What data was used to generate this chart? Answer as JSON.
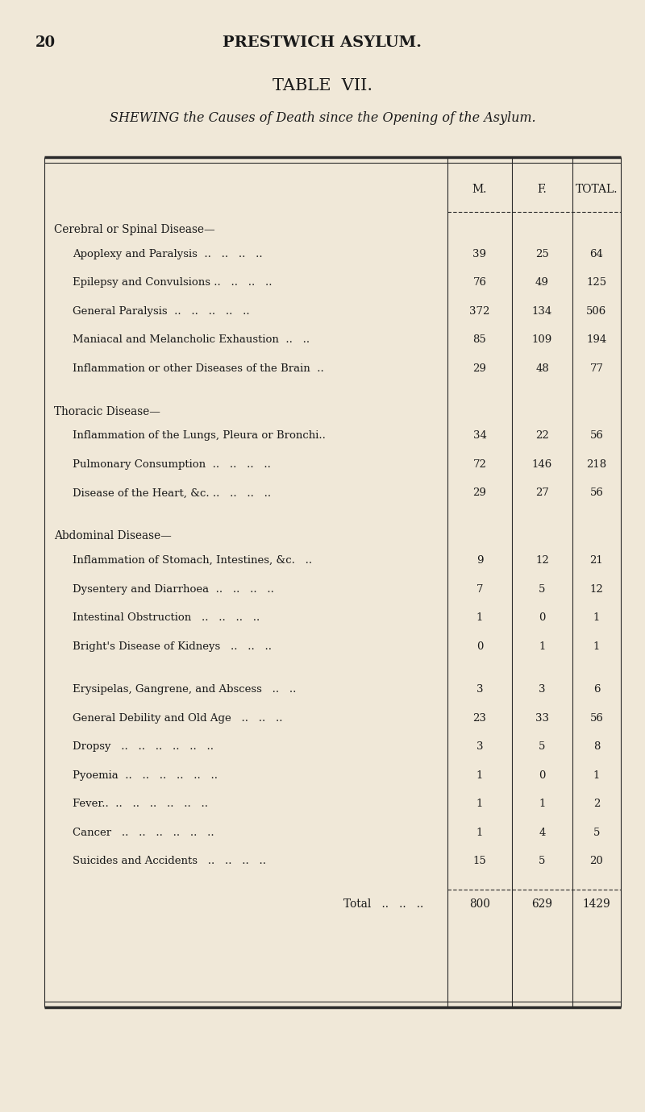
{
  "page_number": "20",
  "header": "PRESTWICH ASYLUM.",
  "table_title": "TABLE  VII.",
  "subtitle": "SHEWING the Causes of Death since the Opening of the Asylum.",
  "bg_color": "#f0e8d8",
  "col_headers": [
    "M.",
    "F.",
    "TOTAL."
  ],
  "sections": [
    {
      "section_header": "Cerebral or Spinal Disease—",
      "rows": [
        {
          "label": "Apoplexy and Paralysis  ..   ..   ..   ..",
          "m": 39,
          "f": 25,
          "total": 64
        },
        {
          "label": "Epilepsy and Convulsions ..   ..   ..   ..",
          "m": 76,
          "f": 49,
          "total": 125
        },
        {
          "label": "General Paralysis  ..   ..   ..   ..   ..",
          "m": 372,
          "f": 134,
          "total": 506
        },
        {
          "label": "Maniacal and Melancholic Exhaustion  ..   ..",
          "m": 85,
          "f": 109,
          "total": 194
        },
        {
          "label": "Inflammation or other Diseases of the Brain  ..",
          "m": 29,
          "f": 48,
          "total": 77
        }
      ]
    },
    {
      "section_header": "Thoracic Disease—",
      "rows": [
        {
          "label": "Inflammation of the Lungs, Pleura or Bronchi..",
          "m": 34,
          "f": 22,
          "total": 56
        },
        {
          "label": "Pulmonary Consumption  ..   ..   ..   ..",
          "m": 72,
          "f": 146,
          "total": 218
        },
        {
          "label": "Disease of the Heart, &c. ..   ..   ..   ..",
          "m": 29,
          "f": 27,
          "total": 56
        }
      ]
    },
    {
      "section_header": "Abdominal Disease—",
      "rows": [
        {
          "label": "Inflammation of Stomach, Intestines, &c.   ..",
          "m": 9,
          "f": 12,
          "total": 21
        },
        {
          "label": "Dysentery and Diarrhoea  ..   ..   ..   ..",
          "m": 7,
          "f": 5,
          "total": 12
        },
        {
          "label": "Intestinal Obstruction   ..   ..   ..   ..",
          "m": 1,
          "f": 0,
          "total": 1
        },
        {
          "label": "Bright's Disease of Kidneys   ..   ..   ..",
          "m": 0,
          "f": 1,
          "total": 1
        }
      ]
    },
    {
      "section_header": null,
      "rows": [
        {
          "label": "Erysipelas, Gangrene, and Abscess   ..   ..",
          "m": 3,
          "f": 3,
          "total": 6
        },
        {
          "label": "General Debility and Old Age   ..   ..   ..",
          "m": 23,
          "f": 33,
          "total": 56
        },
        {
          "label": "Dropsy   ..   ..   ..   ..   ..   ..",
          "m": 3,
          "f": 5,
          "total": 8
        },
        {
          "label": "Pyoemia  ..   ..   ..   ..   ..   ..",
          "m": 1,
          "f": 0,
          "total": 1
        },
        {
          "label": "Fever..  ..   ..   ..   ..   ..   ..",
          "m": 1,
          "f": 1,
          "total": 2
        },
        {
          "label": "Cancer   ..   ..   ..   ..   ..   ..",
          "m": 1,
          "f": 4,
          "total": 5
        },
        {
          "label": "Suicides and Accidents   ..   ..   ..   ..",
          "m": 15,
          "f": 5,
          "total": 20
        }
      ]
    }
  ],
  "total_row": {
    "label": "Total   ..   ..   ..",
    "m": 800,
    "f": 629,
    "total": 1429
  }
}
